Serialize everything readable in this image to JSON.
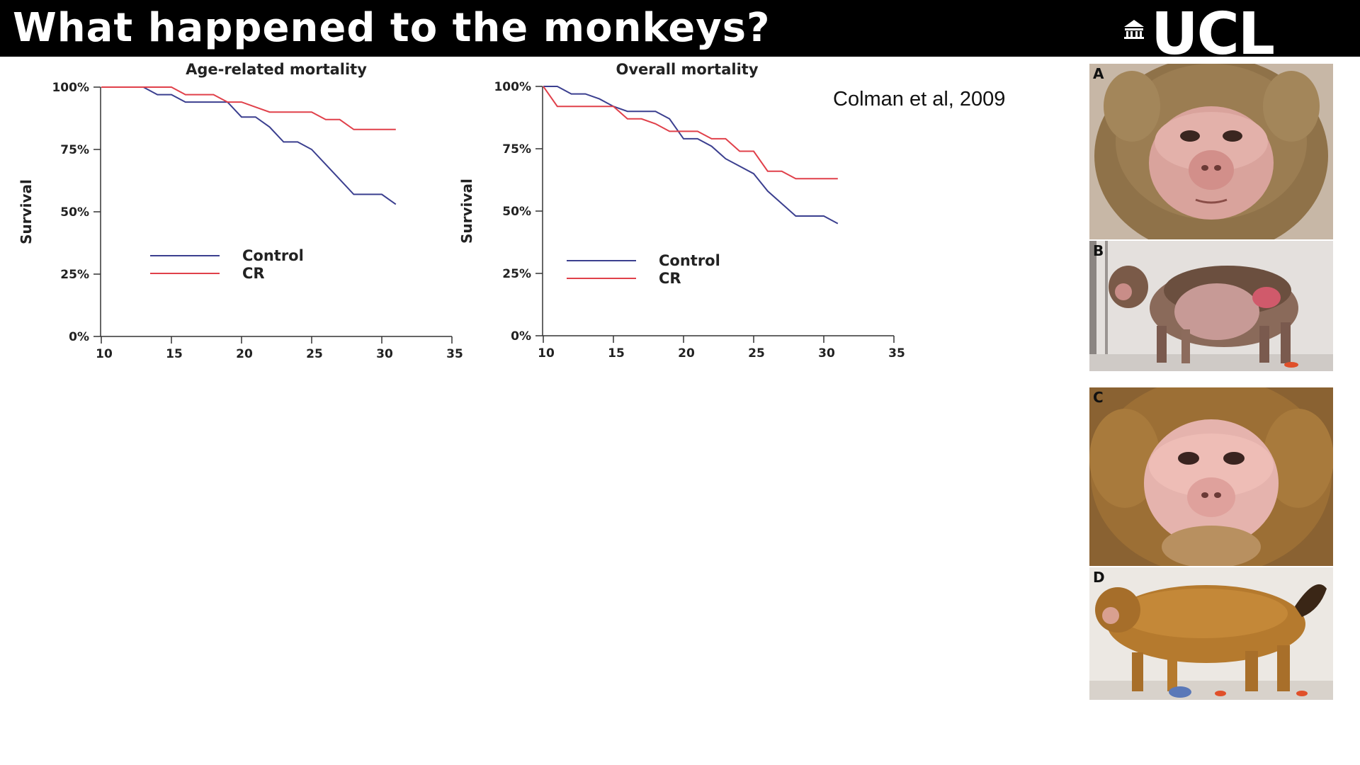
{
  "slide": {
    "title": "What happened to the monkeys?",
    "logo_text": "UCL",
    "citation": "Colman et al, 2009"
  },
  "colors": {
    "title_bar": "#000000",
    "control": "#3b3f8f",
    "cr": "#e0404a"
  },
  "photos": [
    {
      "label": "A",
      "subject": "monkey face (control, aged)"
    },
    {
      "label": "B",
      "subject": "monkey body side view (control, aged)"
    },
    {
      "label": "C",
      "subject": "monkey face (calorie restricted)"
    },
    {
      "label": "D",
      "subject": "monkey body side view (calorie restricted)"
    }
  ],
  "chart_data": [
    {
      "type": "line",
      "title": "Age-related mortality",
      "xlabel": "",
      "ylabel": "Survival",
      "xlim": [
        10,
        35
      ],
      "ylim": [
        0,
        100
      ],
      "x_ticks": [
        "10",
        "15",
        "20",
        "25",
        "30",
        "35"
      ],
      "y_ticks": [
        "0%",
        "25%",
        "50%",
        "75%",
        "100%"
      ],
      "y_tick_values": [
        0,
        25,
        50,
        75,
        100
      ],
      "x_tick_values": [
        10,
        15,
        20,
        25,
        30,
        35
      ],
      "legend_position": "left-lower",
      "series": [
        {
          "name": "Control",
          "color": "#3b3f8f",
          "x": [
            10,
            13,
            14,
            15,
            16,
            17,
            18,
            19,
            20,
            21,
            22,
            23,
            24,
            25,
            26,
            27,
            28,
            29,
            30,
            31
          ],
          "y": [
            100,
            100,
            97,
            97,
            94,
            94,
            94,
            94,
            88,
            88,
            84,
            78,
            78,
            75,
            69,
            63,
            57,
            57,
            57,
            53
          ]
        },
        {
          "name": "CR",
          "color": "#e0404a",
          "x": [
            10,
            15,
            16,
            17,
            18,
            19,
            20,
            21,
            22,
            23,
            24,
            25,
            26,
            27,
            28,
            29,
            30,
            31
          ],
          "y": [
            100,
            100,
            97,
            97,
            97,
            94,
            94,
            92,
            90,
            90,
            90,
            90,
            87,
            87,
            83,
            83,
            83,
            83
          ]
        }
      ]
    },
    {
      "type": "line",
      "title": "Overall mortality",
      "xlabel": "",
      "ylabel": "Survival",
      "xlim": [
        10,
        35
      ],
      "ylim": [
        0,
        100
      ],
      "x_ticks": [
        "10",
        "15",
        "20",
        "25",
        "30",
        "35"
      ],
      "y_ticks": [
        "0%",
        "25%",
        "50%",
        "75%",
        "100%"
      ],
      "y_tick_values": [
        0,
        25,
        50,
        75,
        100
      ],
      "x_tick_values": [
        10,
        15,
        20,
        25,
        30,
        35
      ],
      "legend_position": "left-lower",
      "series": [
        {
          "name": "Control",
          "color": "#3b3f8f",
          "x": [
            10,
            11,
            12,
            13,
            14,
            15,
            16,
            17,
            18,
            19,
            20,
            21,
            22,
            23,
            24,
            25,
            26,
            27,
            28,
            29,
            30,
            31
          ],
          "y": [
            100,
            100,
            97,
            97,
            95,
            92,
            90,
            90,
            90,
            87,
            79,
            79,
            76,
            71,
            68,
            65,
            58,
            53,
            48,
            48,
            48,
            45
          ]
        },
        {
          "name": "CR",
          "color": "#e0404a",
          "x": [
            10,
            11,
            12,
            13,
            14,
            15,
            16,
            17,
            18,
            19,
            20,
            21,
            22,
            23,
            24,
            25,
            26,
            27,
            28,
            29,
            30,
            31
          ],
          "y": [
            100,
            92,
            92,
            92,
            92,
            92,
            87,
            87,
            85,
            82,
            82,
            82,
            79,
            79,
            74,
            74,
            66,
            66,
            63,
            63,
            63,
            63
          ]
        }
      ]
    }
  ]
}
